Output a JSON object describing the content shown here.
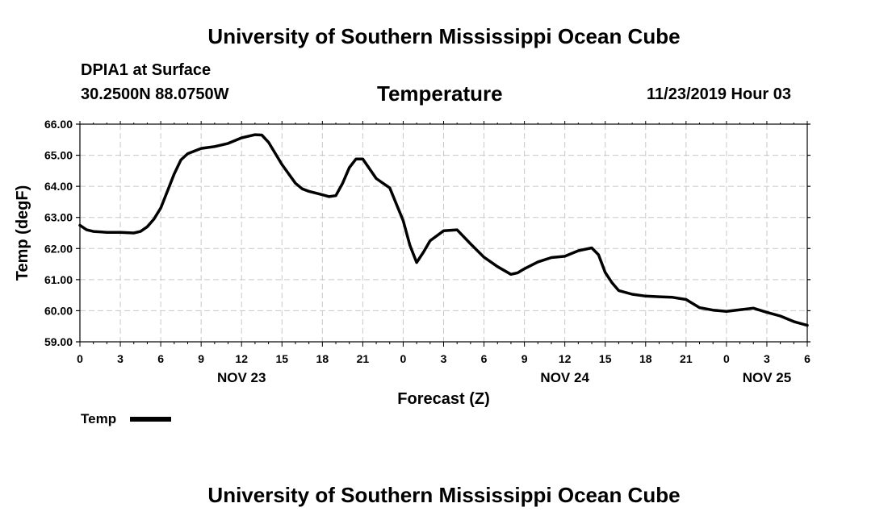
{
  "page": {
    "title_top": "University of Southern Mississippi Ocean Cube",
    "title_bottom": "University of Southern Mississippi Ocean Cube",
    "station_name": "DPIA1 at Surface",
    "station_location": "30.2500N 88.0750W",
    "variable": "Temperature",
    "run_time": "11/23/2019 Hour 03"
  },
  "chart_data": {
    "type": "line",
    "title": "Temperature",
    "xlabel": "Forecast (Z)",
    "ylabel": "Temp (degF)",
    "ylim": [
      59.0,
      66.0
    ],
    "xlim": [
      0,
      54
    ],
    "grid": true,
    "y_ticks": [
      "59.00",
      "60.00",
      "61.00",
      "62.00",
      "63.00",
      "64.00",
      "65.00",
      "66.00"
    ],
    "x_ticks": [
      "0",
      "3",
      "6",
      "9",
      "12",
      "15",
      "18",
      "21",
      "0",
      "3",
      "6",
      "9",
      "12",
      "15",
      "18",
      "21",
      "0",
      "3",
      "6"
    ],
    "day_labels": [
      {
        "label": "NOV 23",
        "hour": 12
      },
      {
        "label": "NOV 24",
        "hour": 36
      },
      {
        "label": "NOV 25",
        "hour": 51
      }
    ],
    "legend": [
      {
        "label": "Temp",
        "color": "#000000"
      }
    ],
    "legend_position": "bottom-left",
    "series": [
      {
        "name": "Temp",
        "color": "#000000",
        "x": [
          0,
          0.5,
          1,
          2,
          3,
          4,
          4.5,
          5,
          5.5,
          6,
          6.5,
          7,
          7.5,
          8,
          9,
          10,
          11,
          12,
          13,
          13.5,
          14,
          15,
          16,
          16.5,
          17,
          18,
          18.5,
          19,
          19.5,
          20,
          20.5,
          21,
          22,
          23,
          24,
          24.5,
          25,
          25.5,
          26,
          27,
          28,
          29,
          30,
          31,
          32,
          32.5,
          33,
          34,
          35,
          36,
          37,
          38,
          38.5,
          39,
          39.5,
          40,
          41,
          42,
          43,
          44,
          45,
          46,
          47,
          48,
          49,
          50,
          51,
          52,
          53,
          54
        ],
        "values": [
          62.75,
          62.6,
          62.55,
          62.52,
          62.52,
          62.5,
          62.55,
          62.7,
          62.95,
          63.3,
          63.85,
          64.4,
          64.85,
          65.05,
          65.22,
          65.28,
          65.38,
          65.56,
          65.66,
          65.65,
          65.42,
          64.7,
          64.1,
          63.92,
          63.84,
          63.73,
          63.67,
          63.7,
          64.1,
          64.6,
          64.88,
          64.88,
          64.25,
          63.95,
          62.9,
          62.1,
          61.55,
          61.88,
          62.25,
          62.57,
          62.6,
          62.15,
          61.72,
          61.42,
          61.17,
          61.22,
          61.35,
          61.57,
          61.71,
          61.75,
          61.93,
          62.02,
          61.8,
          61.23,
          60.9,
          60.65,
          60.53,
          60.47,
          60.45,
          60.43,
          60.36,
          60.1,
          60.02,
          59.98,
          60.03,
          60.08,
          59.95,
          59.83,
          59.65,
          59.53
        ]
      }
    ]
  }
}
